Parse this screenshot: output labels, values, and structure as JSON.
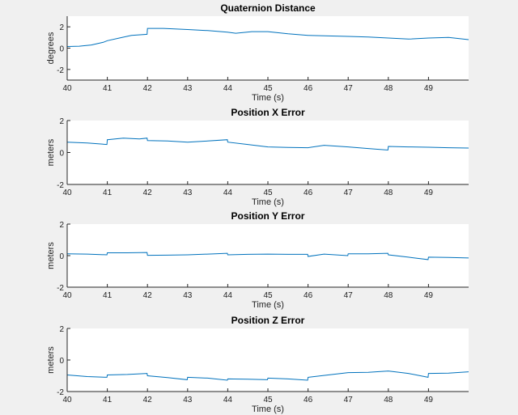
{
  "chart_data": [
    {
      "type": "line",
      "title": "Quaternion Distance",
      "xlabel": "Time (s)",
      "ylabel": "degrees",
      "xlim": [
        40,
        50
      ],
      "ylim": [
        -3,
        3
      ],
      "xticks": [
        40,
        41,
        42,
        43,
        44,
        45,
        46,
        47,
        48,
        49
      ],
      "yticks": [
        -2,
        0,
        2
      ],
      "color": "#0072bd",
      "x": [
        40.0,
        40.3,
        40.6,
        40.9,
        41.0,
        41.3,
        41.6,
        41.99,
        42.0,
        42.4,
        43.0,
        43.5,
        43.99,
        44.2,
        44.6,
        45.0,
        45.5,
        46.0,
        46.5,
        47.0,
        47.5,
        48.0,
        48.5,
        49.0,
        49.5,
        50.0
      ],
      "y": [
        0.15,
        0.18,
        0.3,
        0.55,
        0.7,
        0.95,
        1.2,
        1.3,
        1.85,
        1.85,
        1.75,
        1.65,
        1.5,
        1.4,
        1.55,
        1.55,
        1.35,
        1.2,
        1.15,
        1.1,
        1.05,
        0.95,
        0.85,
        0.95,
        1.0,
        0.8
      ]
    },
    {
      "type": "line",
      "title": "Position X Error",
      "xlabel": "Time (s)",
      "ylabel": "meters",
      "xlim": [
        40,
        50
      ],
      "ylim": [
        -2,
        2
      ],
      "xticks": [
        40,
        41,
        42,
        43,
        44,
        45,
        46,
        47,
        48,
        49
      ],
      "yticks": [
        -2,
        0,
        2
      ],
      "color": "#0072bd",
      "x": [
        40.0,
        40.5,
        40.99,
        41.0,
        41.4,
        41.8,
        41.99,
        42.0,
        42.5,
        43.0,
        43.5,
        43.99,
        44.0,
        44.5,
        45.0,
        45.5,
        46.0,
        46.4,
        47.0,
        47.5,
        47.99,
        48.0,
        48.5,
        49.0,
        49.5,
        50.0
      ],
      "y": [
        0.65,
        0.6,
        0.5,
        0.8,
        0.9,
        0.85,
        0.9,
        0.75,
        0.72,
        0.65,
        0.72,
        0.8,
        0.65,
        0.5,
        0.35,
        0.32,
        0.3,
        0.45,
        0.35,
        0.25,
        0.15,
        0.38,
        0.35,
        0.33,
        0.3,
        0.28
      ]
    },
    {
      "type": "line",
      "title": "Position Y Error",
      "xlabel": "Time (s)",
      "ylabel": "meters",
      "xlim": [
        40,
        50
      ],
      "ylim": [
        -2,
        2
      ],
      "xticks": [
        40,
        41,
        42,
        43,
        44,
        45,
        46,
        47,
        48,
        49
      ],
      "yticks": [
        -2,
        0,
        2
      ],
      "color": "#0072bd",
      "x": [
        40.0,
        40.5,
        40.99,
        41.0,
        41.5,
        41.99,
        42.0,
        42.5,
        43.0,
        43.5,
        43.99,
        44.0,
        44.5,
        45.0,
        45.5,
        45.99,
        46.0,
        46.4,
        46.99,
        47.0,
        47.5,
        47.99,
        48.0,
        48.5,
        48.99,
        49.0,
        49.5,
        50.0
      ],
      "y": [
        0.12,
        0.1,
        0.05,
        0.18,
        0.18,
        0.2,
        0.02,
        0.03,
        0.05,
        0.1,
        0.15,
        0.05,
        0.08,
        0.1,
        0.08,
        0.08,
        -0.05,
        0.1,
        0.0,
        0.12,
        0.12,
        0.15,
        0.05,
        -0.1,
        -0.25,
        -0.1,
        -0.12,
        -0.15
      ]
    },
    {
      "type": "line",
      "title": "Position Z Error",
      "xlabel": "Time (s)",
      "ylabel": "meters",
      "xlim": [
        40,
        50
      ],
      "ylim": [
        -2,
        2
      ],
      "xticks": [
        40,
        41,
        42,
        43,
        44,
        45,
        46,
        47,
        48,
        49
      ],
      "yticks": [
        -2,
        0,
        2
      ],
      "color": "#0072bd",
      "x": [
        40.0,
        40.5,
        40.99,
        41.0,
        41.5,
        41.99,
        42.0,
        42.5,
        42.99,
        43.0,
        43.5,
        43.99,
        44.0,
        44.5,
        44.99,
        45.0,
        45.5,
        45.99,
        46.0,
        46.5,
        47.0,
        47.5,
        48.0,
        48.5,
        48.99,
        49.0,
        49.5,
        50.0
      ],
      "y": [
        -0.95,
        -1.05,
        -1.1,
        -0.95,
        -0.92,
        -0.85,
        -1.0,
        -1.12,
        -1.25,
        -1.1,
        -1.15,
        -1.28,
        -1.2,
        -1.22,
        -1.25,
        -1.15,
        -1.2,
        -1.28,
        -1.1,
        -0.95,
        -0.8,
        -0.78,
        -0.7,
        -0.85,
        -1.1,
        -0.85,
        -0.83,
        -0.75
      ]
    }
  ]
}
